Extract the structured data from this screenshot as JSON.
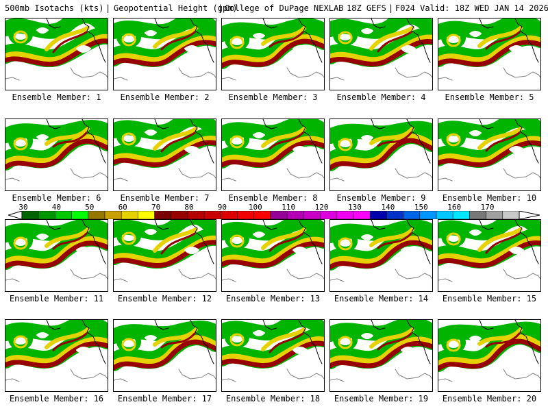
{
  "header": {
    "field": "500mb Isotachs (kts)",
    "sep1": "|",
    "height": "Geopotential Height (gpm)",
    "sep2": "|",
    "source": "College of DuPage NEXLAB",
    "model": "18Z GEFS",
    "sep3": "|",
    "valid": "F024 Valid: 18Z WED JAN 14 2026"
  },
  "members": [
    {
      "label": "Ensemble Member: 1"
    },
    {
      "label": "Ensemble Member: 2"
    },
    {
      "label": "Ensemble Member: 3"
    },
    {
      "label": "Ensemble Member: 4"
    },
    {
      "label": "Ensemble Member: 5"
    },
    {
      "label": "Ensemble Member: 6"
    },
    {
      "label": "Ensemble Member: 7"
    },
    {
      "label": "Ensemble Member: 8"
    },
    {
      "label": "Ensemble Member: 9"
    },
    {
      "label": "Ensemble Member: 10"
    },
    {
      "label": "Ensemble Member: 11"
    },
    {
      "label": "Ensemble Member: 12"
    },
    {
      "label": "Ensemble Member: 13"
    },
    {
      "label": "Ensemble Member: 14"
    },
    {
      "label": "Ensemble Member: 15"
    },
    {
      "label": "Ensemble Member: 16"
    },
    {
      "label": "Ensemble Member: 17"
    },
    {
      "label": "Ensemble Member: 18"
    },
    {
      "label": "Ensemble Member: 19"
    },
    {
      "label": "Ensemble Member: 20"
    }
  ],
  "colorbar": {
    "ticks": [
      "30",
      "40",
      "50",
      "60",
      "70",
      "80",
      "90",
      "100",
      "110",
      "120",
      "130",
      "140",
      "150",
      "160",
      "170"
    ],
    "colors": [
      "#006400",
      "#009600",
      "#00c800",
      "#00ff00",
      "#967800",
      "#c8a000",
      "#e6d200",
      "#ffff00",
      "#7a0000",
      "#960000",
      "#b40000",
      "#c80000",
      "#dc0000",
      "#f00000",
      "#ff0000",
      "#960096",
      "#b400b4",
      "#c800c8",
      "#dc00dc",
      "#f000f0",
      "#ff00ff",
      "#0000aa",
      "#0032c8",
      "#0064e6",
      "#0096ff",
      "#00c8ff",
      "#00e6ff",
      "#787878",
      "#a0a0a0",
      "#c8c8c8"
    ]
  },
  "map_colors": {
    "slow": "#00b400",
    "mid": "#e6d200",
    "fast": "#960000",
    "coast": "#000000",
    "border": "#808080"
  }
}
